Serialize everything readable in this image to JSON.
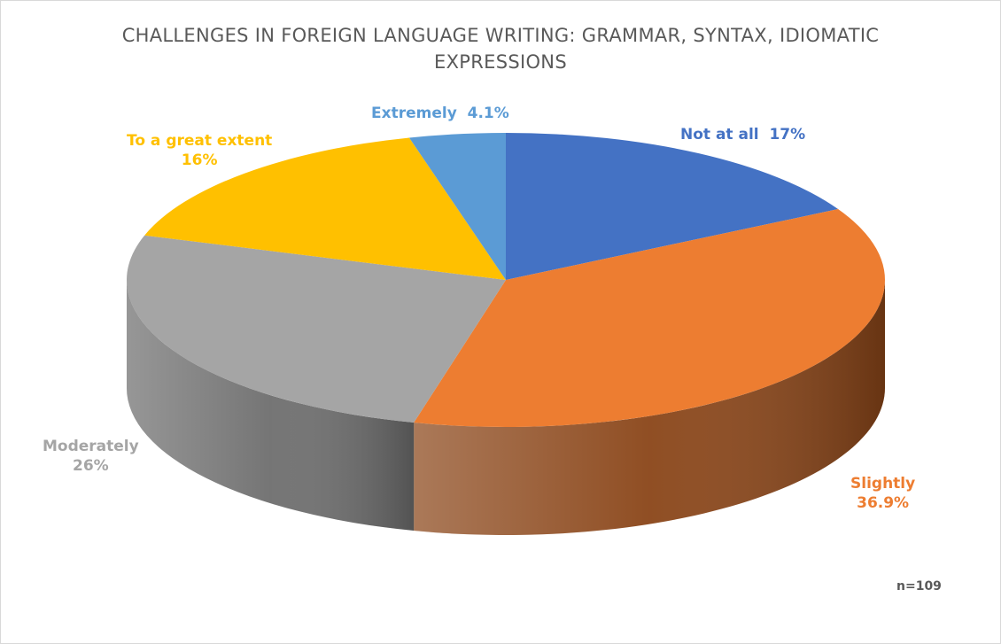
{
  "chart_data": {
    "type": "pie",
    "title": "CHALLENGES IN FOREIGN LANGUAGE WRITING: GRAMMAR, SYNTAX, IDIOMATIC EXPRESSIONS",
    "slices": [
      {
        "label": "Not at all",
        "value": 17,
        "value_text": "17%",
        "color": "#4472C4",
        "side_color": "#2F528F"
      },
      {
        "label": "Slightly",
        "value": 36.9,
        "value_text": "36.9%",
        "color": "#ED7D31",
        "side_color": "#8A4518"
      },
      {
        "label": "Moderately",
        "value": 26,
        "value_text": "26%",
        "color": "#A5A5A5",
        "side_color": "#6E6E6E"
      },
      {
        "label": "To a great extent",
        "value": 16,
        "value_text": "16%",
        "color": "#FFC000",
        "side_color": "#B38600"
      },
      {
        "label": "Extremely",
        "value": 4.1,
        "value_text": "4.1%",
        "color": "#5B9BD5",
        "side_color": "#3A6E9E"
      }
    ],
    "legend": "none",
    "note": "n=109"
  }
}
